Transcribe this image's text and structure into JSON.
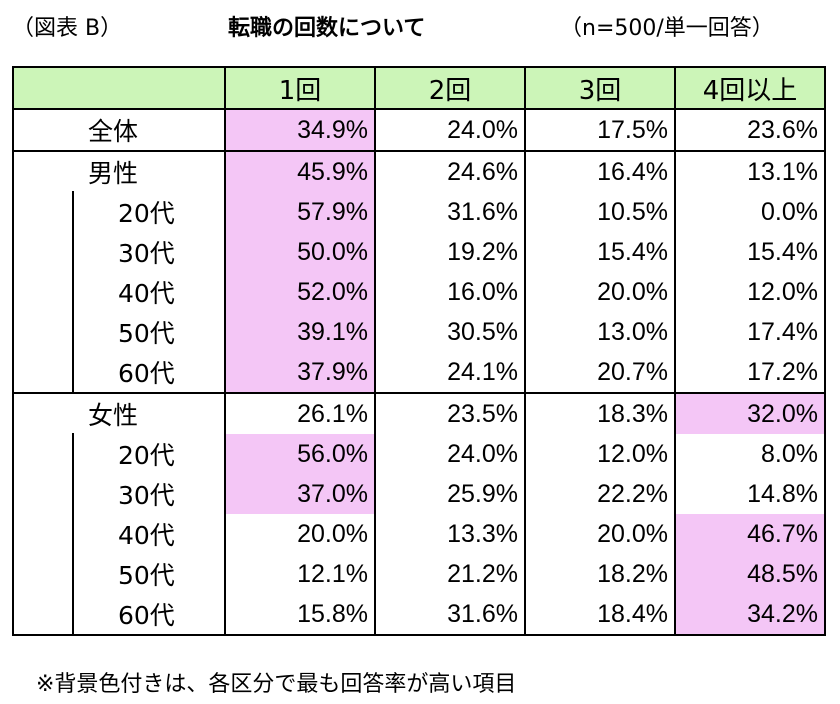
{
  "header": {
    "label": "（図表 B）",
    "title": "転職の回数について",
    "sample": "（n=500/単一回答）"
  },
  "note": "※背景色付きは、各区分で最も回答率が高い項目",
  "colors": {
    "header_bg": "#ccf5b8",
    "highlight_bg": "#f4c6f6"
  },
  "chart_data": {
    "type": "table",
    "columns": [
      "1回",
      "2回",
      "3回",
      "4回以上"
    ],
    "rows": [
      {
        "label": "全体",
        "level": "top",
        "values": [
          "34.9%",
          "24.0%",
          "17.5%",
          "23.6%"
        ],
        "highlight": 0
      },
      {
        "label": "男性",
        "level": "group",
        "values": [
          "45.9%",
          "24.6%",
          "16.4%",
          "13.1%"
        ],
        "highlight": 0
      },
      {
        "label": "20代",
        "level": "sub",
        "values": [
          "57.9%",
          "31.6%",
          "10.5%",
          "0.0%"
        ],
        "highlight": 0
      },
      {
        "label": "30代",
        "level": "sub",
        "values": [
          "50.0%",
          "19.2%",
          "15.4%",
          "15.4%"
        ],
        "highlight": 0
      },
      {
        "label": "40代",
        "level": "sub",
        "values": [
          "52.0%",
          "16.0%",
          "20.0%",
          "12.0%"
        ],
        "highlight": 0
      },
      {
        "label": "50代",
        "level": "sub",
        "values": [
          "39.1%",
          "30.5%",
          "13.0%",
          "17.4%"
        ],
        "highlight": 0
      },
      {
        "label": "60代",
        "level": "sub",
        "values": [
          "37.9%",
          "24.1%",
          "20.7%",
          "17.2%"
        ],
        "highlight": 0
      },
      {
        "label": "女性",
        "level": "group",
        "values": [
          "26.1%",
          "23.5%",
          "18.3%",
          "32.0%"
        ],
        "highlight": 3
      },
      {
        "label": "20代",
        "level": "sub",
        "values": [
          "56.0%",
          "24.0%",
          "12.0%",
          "8.0%"
        ],
        "highlight": 0
      },
      {
        "label": "30代",
        "level": "sub",
        "values": [
          "37.0%",
          "25.9%",
          "22.2%",
          "14.8%"
        ],
        "highlight": 0
      },
      {
        "label": "40代",
        "level": "sub",
        "values": [
          "20.0%",
          "13.3%",
          "20.0%",
          "46.7%"
        ],
        "highlight": 3
      },
      {
        "label": "50代",
        "level": "sub",
        "values": [
          "12.1%",
          "21.2%",
          "18.2%",
          "48.5%"
        ],
        "highlight": 3
      },
      {
        "label": "60代",
        "level": "sub",
        "values": [
          "15.8%",
          "31.6%",
          "18.4%",
          "34.2%"
        ],
        "highlight": 3
      }
    ]
  }
}
